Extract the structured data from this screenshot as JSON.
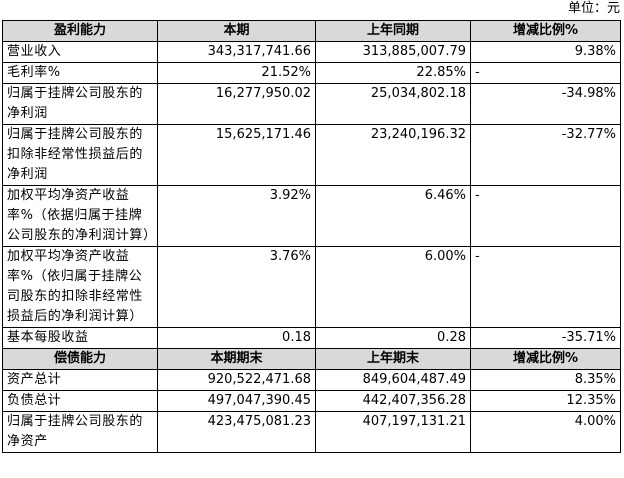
{
  "unit": "单位：元",
  "sections": [
    {
      "header": [
        "盈利能力",
        "本期",
        "上年同期",
        "增减比例%"
      ],
      "rows": [
        [
          "营业收入",
          "343,317,741.66",
          "313,885,007.79",
          "9.38%"
        ],
        [
          "毛利率%",
          "21.52%",
          "22.85%",
          "-"
        ],
        [
          "归属于挂牌公司股东的净利润",
          "16,277,950.02",
          "25,034,802.18",
          "-34.98%"
        ],
        [
          "归属于挂牌公司股东的扣除非经常性损益后的净利润",
          "15,625,171.46",
          "23,240,196.32",
          "-32.77%"
        ],
        [
          "加权平均净资产收益率%（依据归属于挂牌公司股东的净利润计算）",
          "3.92%",
          "6.46%",
          "-"
        ],
        [
          "加权平均净资产收益率%（依归属于挂牌公司股东的扣除非经常性损益后的净利润计算）",
          "3.76%",
          "6.00%",
          "-"
        ],
        [
          "基本每股收益",
          "0.18",
          "0.28",
          "-35.71%"
        ]
      ]
    },
    {
      "header": [
        "偿债能力",
        "本期期末",
        "上年期末",
        "增减比例%"
      ],
      "rows": [
        [
          "资产总计",
          "920,522,471.68",
          "849,604,487.49",
          "8.35%"
        ],
        [
          "负债总计",
          "497,047,390.45",
          "442,407,356.28",
          "12.35%"
        ],
        [
          "归属于挂牌公司股东的净资产",
          "423,475,081.23",
          "407,197,131.21",
          "4.00%"
        ]
      ]
    }
  ]
}
